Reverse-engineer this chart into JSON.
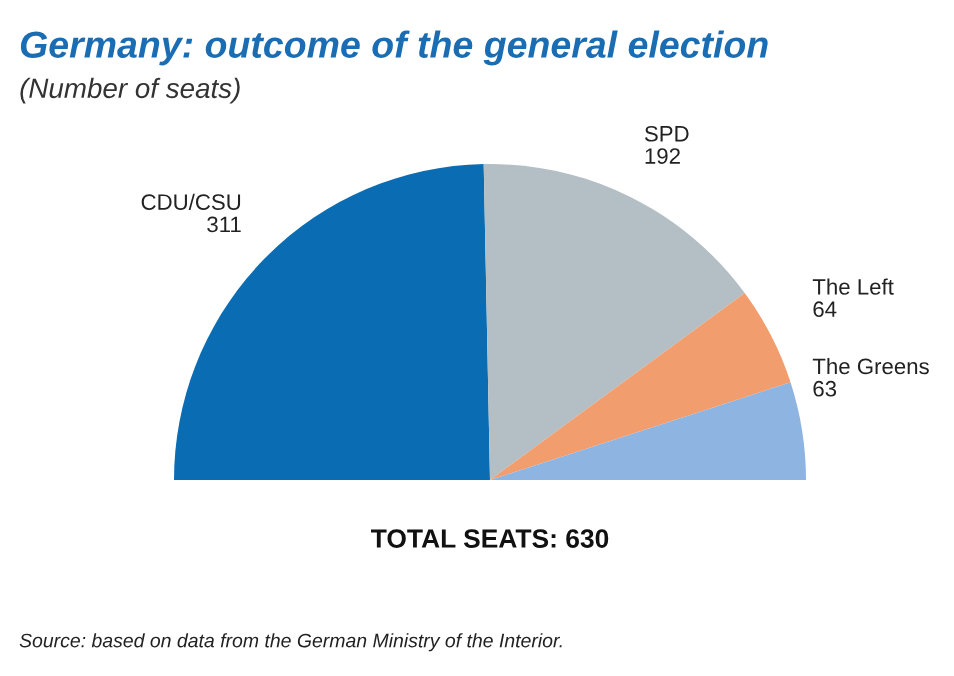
{
  "chart_data": {
    "type": "pie",
    "title": "Germany: outcome of the general election",
    "subtitle": "(Number of seats)",
    "categories": [
      "CDU/CSU",
      "SPD",
      "The Left",
      "The Greens"
    ],
    "values": [
      311,
      192,
      64,
      63
    ],
    "colors": [
      "#0a6cb2",
      "#b3bfc4",
      "#f29d6e",
      "#8eb4e2"
    ],
    "data_labels": true,
    "annotations": [
      "TOTAL SEATS: 630",
      "Source: based on data from the German Ministry of the Interior."
    ]
  }
}
